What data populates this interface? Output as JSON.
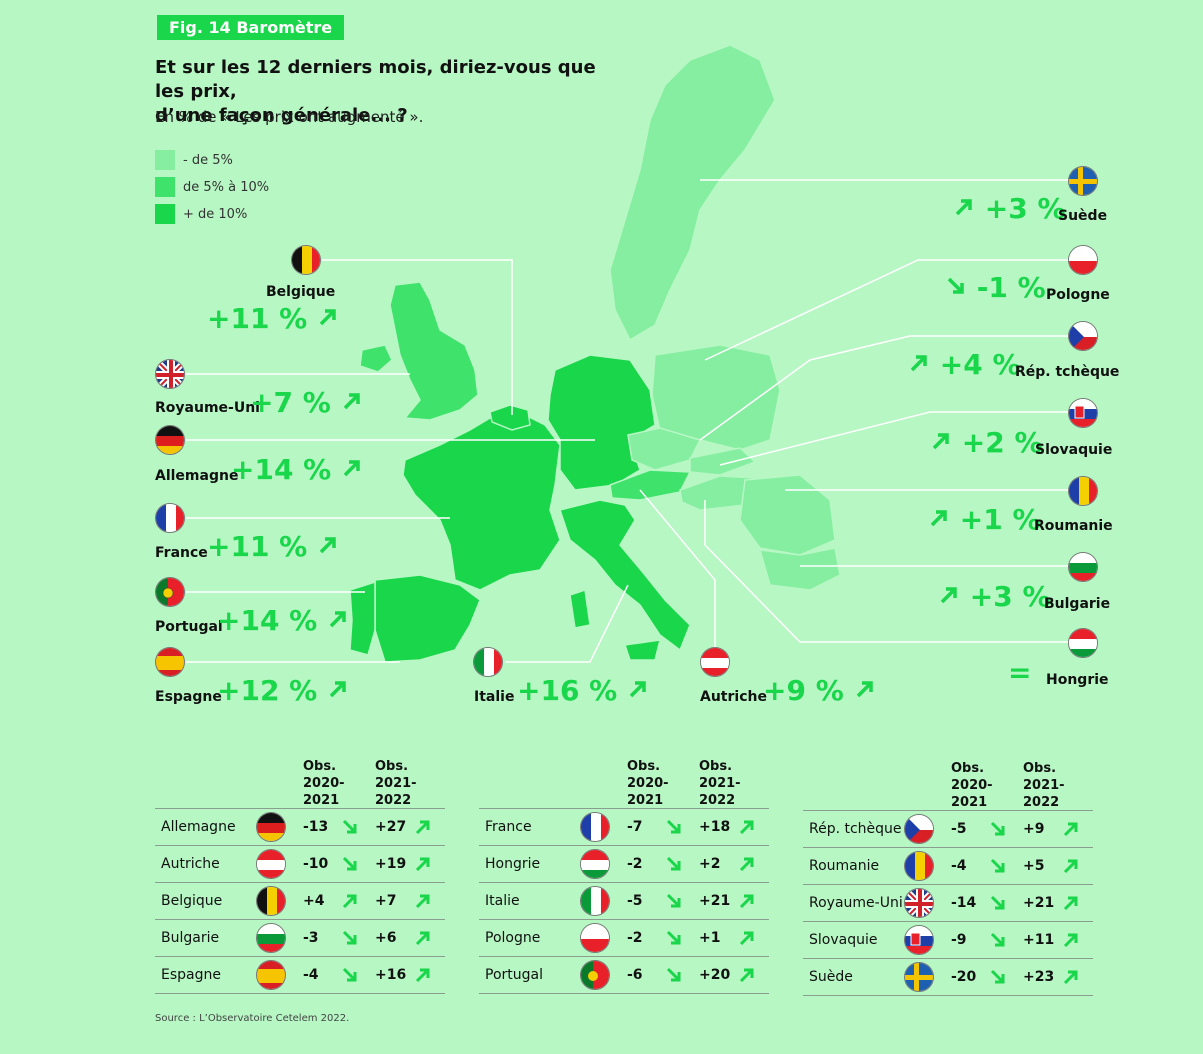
{
  "header": {
    "figure": "Fig. 14 Baromètre",
    "question_line1": "Et sur les 12 derniers mois, diriez-vous que les prix,",
    "question_line2": "d’une façon générale... ?",
    "subtitle": "En % de « Les prix ont augmenté »."
  },
  "legend": [
    {
      "label": "- de 5%",
      "color": "#86eea0"
    },
    {
      "label": "de 5% à 10%",
      "color": "#3fe36b"
    },
    {
      "label": "+ de 10%",
      "color": "#19d64a"
    }
  ],
  "colors": {
    "accent": "#19d64a",
    "background": "#b7f7c4",
    "low": "#86eea0",
    "high": "#19d64a"
  },
  "map_labels": [
    {
      "country": "Belgique",
      "value": "+11 %",
      "direction": "up"
    },
    {
      "country": "Royaume-Uni",
      "value": "+7 %",
      "direction": "up"
    },
    {
      "country": "Allemagne",
      "value": "+14 %",
      "direction": "up"
    },
    {
      "country": "France",
      "value": "+11 %",
      "direction": "up"
    },
    {
      "country": "Portugal",
      "value": "+14 %",
      "direction": "up"
    },
    {
      "country": "Espagne",
      "value": "+12 %",
      "direction": "up"
    },
    {
      "country": "Italie",
      "value": "+16 %",
      "direction": "up"
    },
    {
      "country": "Autriche",
      "value": "+9 %",
      "direction": "up"
    },
    {
      "country": "Suède",
      "value": "+3 %",
      "direction": "up"
    },
    {
      "country": "Pologne",
      "value": "-1 %",
      "direction": "down"
    },
    {
      "country": "Rép. tchèque",
      "value": "+4 %",
      "direction": "up"
    },
    {
      "country": "Slovaquie",
      "value": "+2 %",
      "direction": "up"
    },
    {
      "country": "Roumanie",
      "value": "+1 %",
      "direction": "up"
    },
    {
      "country": "Bulgarie",
      "value": "+3 %",
      "direction": "up"
    },
    {
      "country": "Hongrie",
      "value": "=",
      "direction": "equal"
    }
  ],
  "table": {
    "col1": "Obs. 2020-2021",
    "col1_lines": [
      "Obs.",
      "2020-",
      "2021"
    ],
    "col2_lines": [
      "Obs.",
      "2021-",
      "2022"
    ],
    "groups": [
      [
        {
          "country": "Allemagne",
          "flag": "de",
          "v1": "-13",
          "v2": "+27"
        },
        {
          "country": "Autriche",
          "flag": "at",
          "v1": "-10",
          "v2": "+19"
        },
        {
          "country": "Belgique",
          "flag": "be",
          "v1": "+4",
          "v2": "+7"
        },
        {
          "country": "Bulgarie",
          "flag": "bg",
          "v1": "-3",
          "v2": "+6"
        },
        {
          "country": "Espagne",
          "flag": "es",
          "v1": "-4",
          "v2": "+16"
        }
      ],
      [
        {
          "country": "France",
          "flag": "fr",
          "v1": "-7",
          "v2": "+18"
        },
        {
          "country": "Hongrie",
          "flag": "hu",
          "v1": "-2",
          "v2": "+2"
        },
        {
          "country": "Italie",
          "flag": "it",
          "v1": "-5",
          "v2": "+21"
        },
        {
          "country": "Pologne",
          "flag": "pl",
          "v1": "-2",
          "v2": "+1"
        },
        {
          "country": "Portugal",
          "flag": "pt",
          "v1": "-6",
          "v2": "+20"
        }
      ],
      [
        {
          "country": "Rép. tchèque",
          "flag": "cz",
          "v1": "-5",
          "v2": "+9"
        },
        {
          "country": "Roumanie",
          "flag": "ro",
          "v1": "-4",
          "v2": "+5"
        },
        {
          "country": "Royaume-Uni",
          "flag": "gb",
          "v1": "-14",
          "v2": "+21"
        },
        {
          "country": "Slovaquie",
          "flag": "sk",
          "v1": "-9",
          "v2": "+11"
        },
        {
          "country": "Suède",
          "flag": "se",
          "v1": "-20",
          "v2": "+23"
        }
      ]
    ]
  },
  "source": "Source : L’Observatoire Cetelem 2022."
}
